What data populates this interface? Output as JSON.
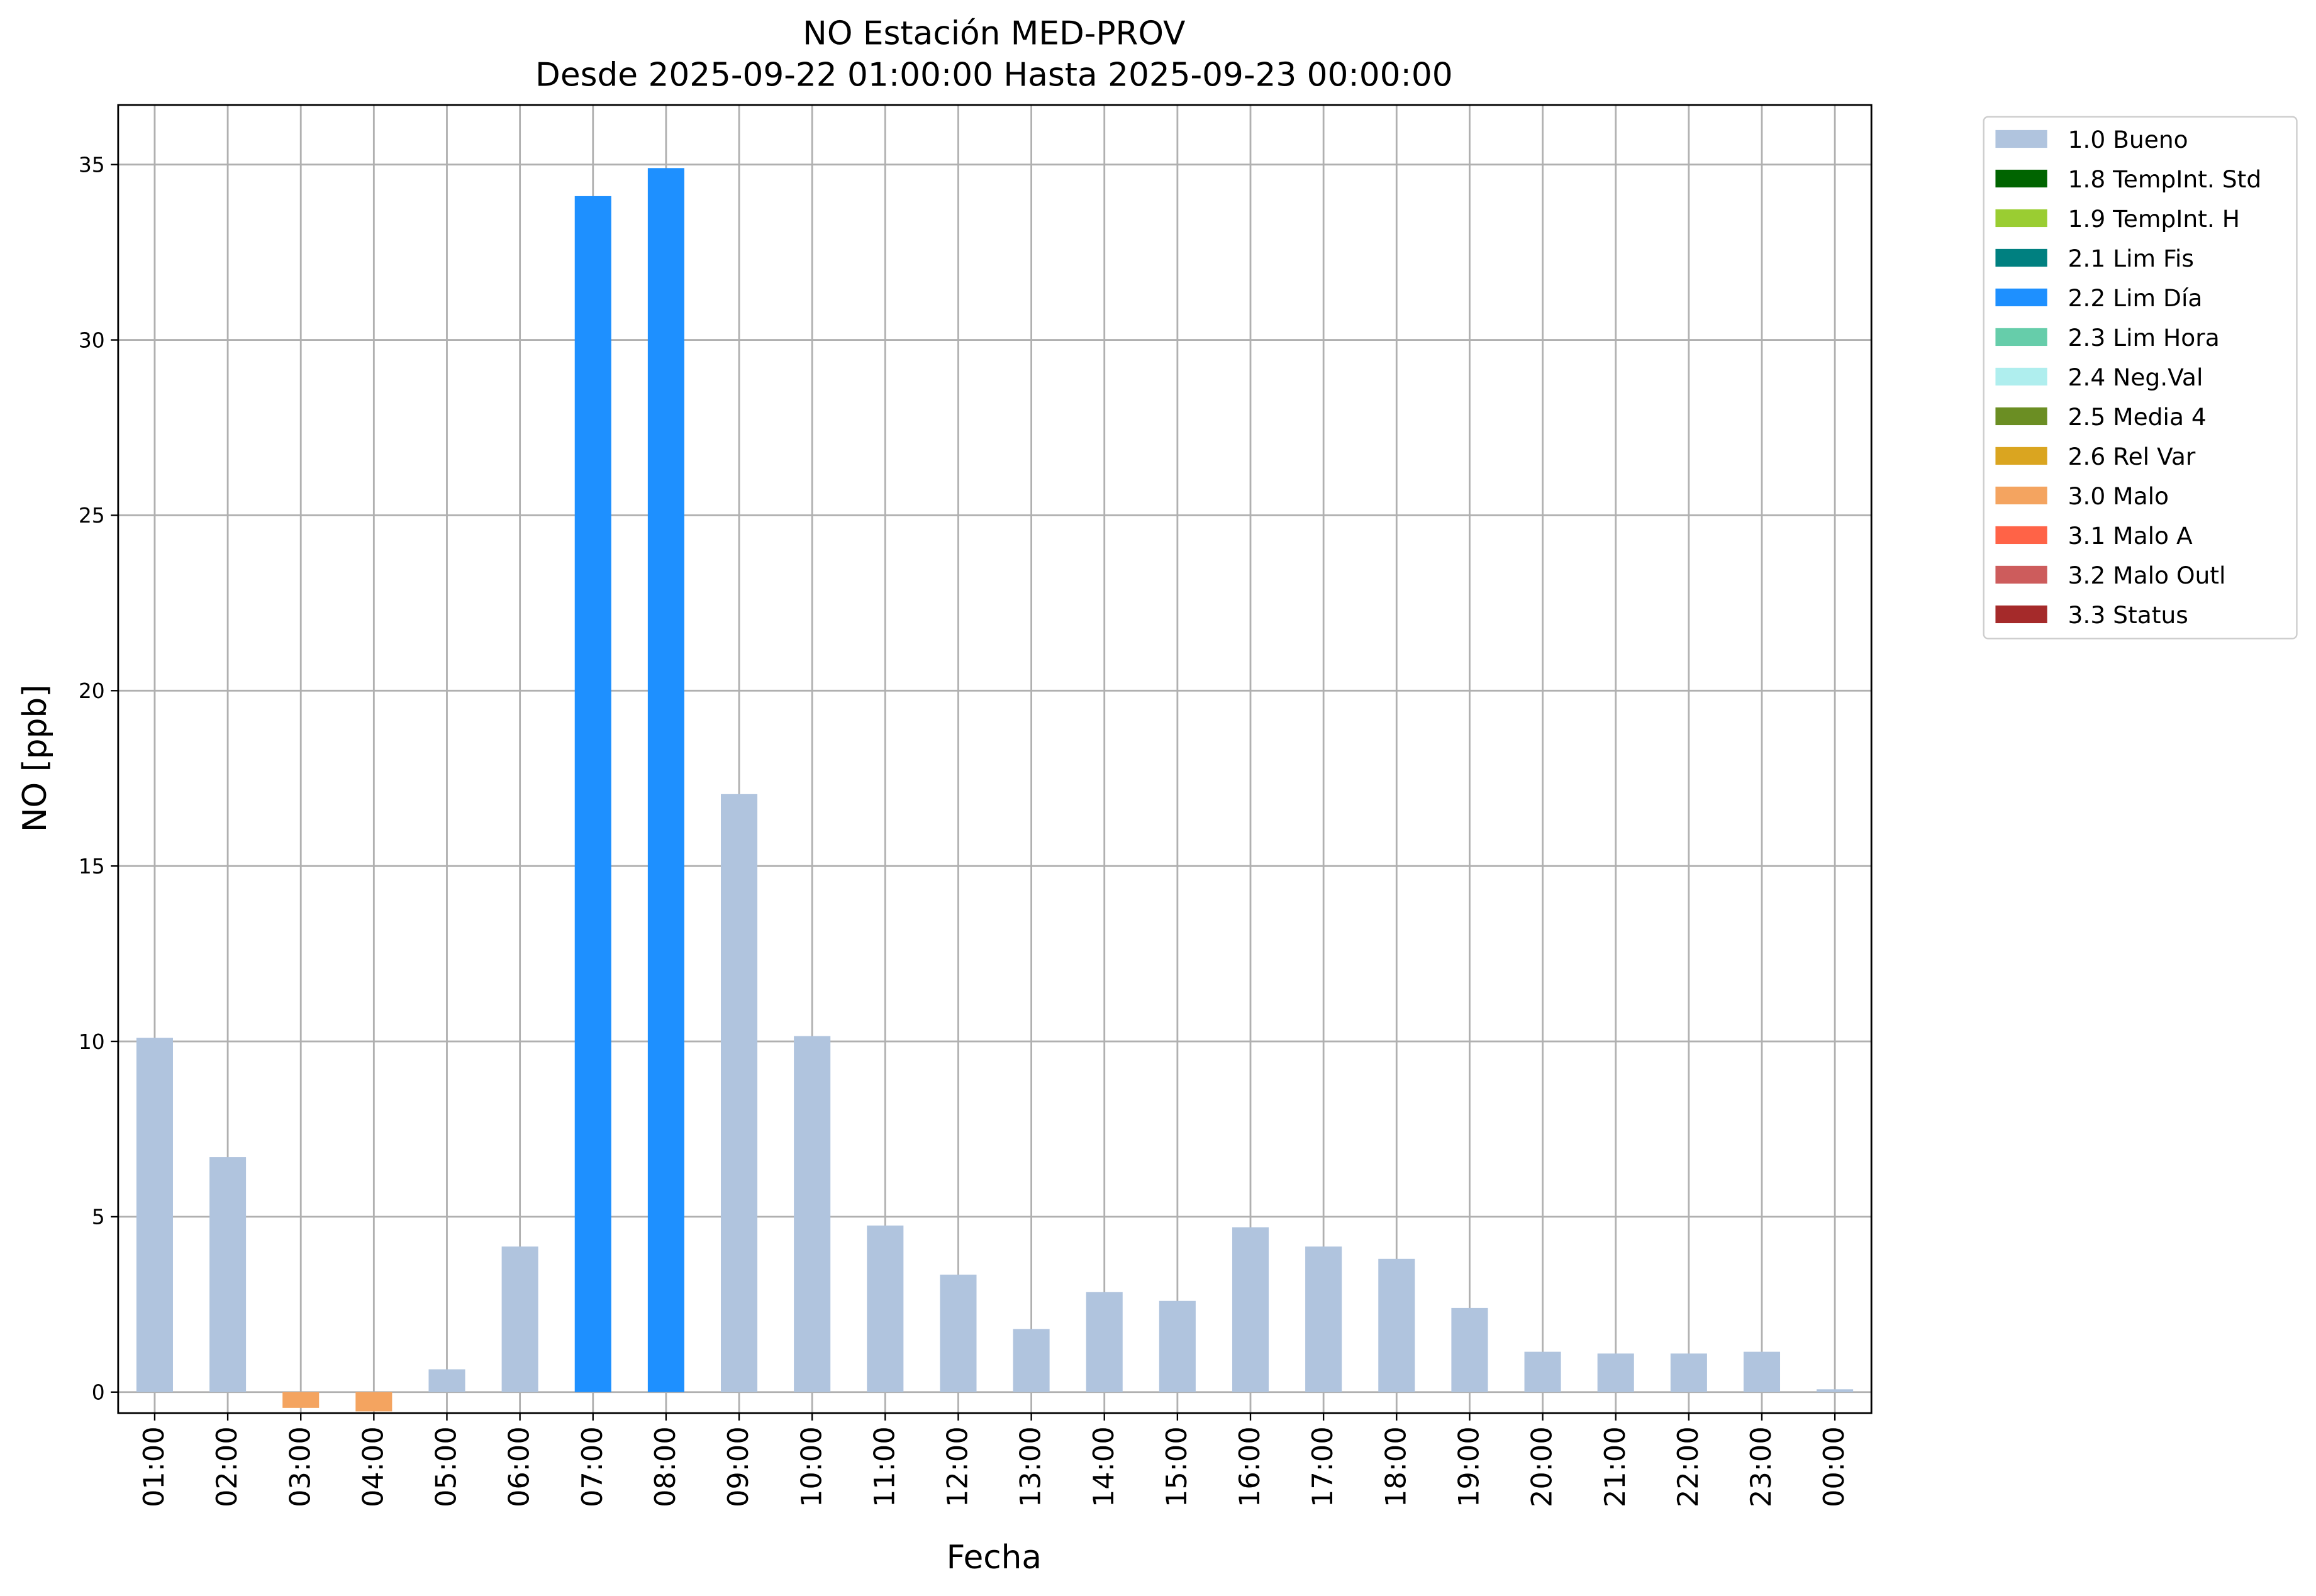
{
  "chart_data": {
    "type": "bar",
    "stacked": true,
    "title": "NO Estación MED-PROV",
    "subtitle": "Desde 2025-09-22 01:00:00 Hasta 2025-09-23 00:00:00",
    "x_label": "Fecha",
    "y_label": "NO [ppb]",
    "categories": [
      "01:00",
      "02:00",
      "03:00",
      "04:00",
      "05:00",
      "06:00",
      "07:00",
      "08:00",
      "09:00",
      "10:00",
      "11:00",
      "12:00",
      "13:00",
      "14:00",
      "15:00",
      "16:00",
      "17:00",
      "18:00",
      "19:00",
      "20:00",
      "21:00",
      "22:00",
      "23:00",
      "00:00"
    ],
    "series": [
      {
        "name": "1.0 Bueno",
        "color": "#b0c4de",
        "values": [
          10.1,
          6.7,
          null,
          null,
          0.65,
          4.15,
          null,
          null,
          17.05,
          10.15,
          4.75,
          3.35,
          1.8,
          2.85,
          2.6,
          4.7,
          4.15,
          3.8,
          2.4,
          1.15,
          1.1,
          1.1,
          1.15,
          0.08
        ]
      },
      {
        "name": "1.8 TempInt. Std",
        "color": "#006400",
        "values": [
          null,
          null,
          null,
          null,
          null,
          null,
          null,
          null,
          null,
          null,
          null,
          null,
          null,
          null,
          null,
          null,
          null,
          null,
          null,
          null,
          null,
          null,
          null,
          null
        ]
      },
      {
        "name": "1.9 TempInt. H",
        "color": "#9acd32",
        "values": [
          null,
          null,
          null,
          null,
          null,
          null,
          null,
          null,
          null,
          null,
          null,
          null,
          null,
          null,
          null,
          null,
          null,
          null,
          null,
          null,
          null,
          null,
          null,
          null
        ]
      },
      {
        "name": "2.1 Lim Fis",
        "color": "#008080",
        "values": [
          null,
          null,
          null,
          null,
          null,
          null,
          null,
          null,
          null,
          null,
          null,
          null,
          null,
          null,
          null,
          null,
          null,
          null,
          null,
          null,
          null,
          null,
          null,
          null
        ]
      },
      {
        "name": "2.2 Lim Día",
        "color": "#1e90ff",
        "values": [
          null,
          null,
          null,
          null,
          null,
          null,
          34.1,
          34.9,
          null,
          null,
          null,
          null,
          null,
          null,
          null,
          null,
          null,
          null,
          null,
          null,
          null,
          null,
          null,
          null
        ]
      },
      {
        "name": "2.3 Lim Hora",
        "color": "#66cdaa",
        "values": [
          null,
          null,
          null,
          null,
          null,
          null,
          null,
          null,
          null,
          null,
          null,
          null,
          null,
          null,
          null,
          null,
          null,
          null,
          null,
          null,
          null,
          null,
          null,
          null
        ]
      },
      {
        "name": "2.4 Neg.Val",
        "color": "#afeeee",
        "values": [
          null,
          null,
          null,
          null,
          null,
          null,
          null,
          null,
          null,
          null,
          null,
          null,
          null,
          null,
          null,
          null,
          null,
          null,
          null,
          null,
          null,
          null,
          null,
          null
        ]
      },
      {
        "name": "2.5 Media 4",
        "color": "#6b8e23",
        "values": [
          null,
          null,
          null,
          null,
          null,
          null,
          null,
          null,
          null,
          null,
          null,
          null,
          null,
          null,
          null,
          null,
          null,
          null,
          null,
          null,
          null,
          null,
          null,
          null
        ]
      },
      {
        "name": "2.6 Rel Var",
        "color": "#daa520",
        "values": [
          null,
          null,
          null,
          null,
          null,
          null,
          null,
          null,
          null,
          null,
          null,
          null,
          null,
          null,
          null,
          null,
          null,
          null,
          null,
          null,
          null,
          null,
          null,
          null
        ]
      },
      {
        "name": "3.0 Malo",
        "color": "#f4a460",
        "values": [
          null,
          null,
          -0.45,
          -0.55,
          null,
          null,
          null,
          null,
          null,
          null,
          null,
          null,
          null,
          null,
          null,
          null,
          null,
          null,
          null,
          null,
          null,
          null,
          null,
          null
        ]
      },
      {
        "name": "3.1 Malo A",
        "color": "#ff6347",
        "values": [
          null,
          null,
          null,
          null,
          null,
          null,
          null,
          null,
          null,
          null,
          null,
          null,
          null,
          null,
          null,
          null,
          null,
          null,
          null,
          null,
          null,
          null,
          null,
          null
        ]
      },
      {
        "name": "3.2 Malo Outl",
        "color": "#cd5c5c",
        "values": [
          null,
          null,
          null,
          null,
          null,
          null,
          null,
          null,
          null,
          null,
          null,
          null,
          null,
          null,
          null,
          null,
          null,
          null,
          null,
          null,
          null,
          null,
          null,
          null
        ]
      },
      {
        "name": "3.3 Status",
        "color": "#a52a2a",
        "values": [
          null,
          null,
          null,
          null,
          null,
          null,
          null,
          null,
          null,
          null,
          null,
          null,
          null,
          null,
          null,
          null,
          null,
          null,
          null,
          null,
          null,
          null,
          null,
          null
        ]
      }
    ],
    "ylim": [
      -0.6,
      36.7
    ],
    "yticks": [
      0,
      5,
      10,
      15,
      20,
      25,
      30,
      35
    ],
    "grid": true,
    "legend": "outside right"
  }
}
